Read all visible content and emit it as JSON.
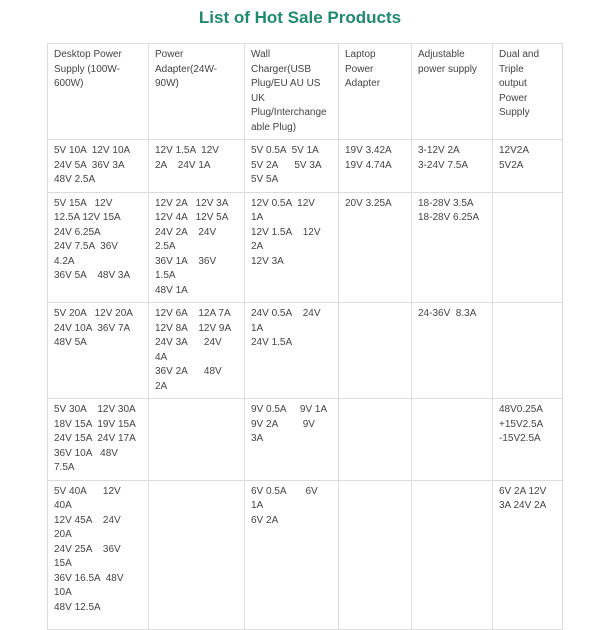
{
  "header": {
    "title": "List of Hot Sale Products"
  },
  "table": {
    "columns": [
      [
        "Desktop Power",
        "Supply (100W-",
        "600W)"
      ],
      [
        "Power",
        "Adapter(24W-",
        "90W)"
      ],
      [
        "Wall",
        "Charger(USB",
        "Plug/EU AU US",
        "UK",
        "Plug/Interchange",
        "able Plug)"
      ],
      [
        "Laptop",
        "Power",
        "Adapter"
      ],
      [
        "Adjustable",
        "power supply"
      ],
      [
        "Dual and",
        "Triple",
        "output",
        "Power",
        "Supply"
      ]
    ],
    "rows": [
      [
        [
          "5V 10A  12V 10A",
          "24V 5A  36V 3A",
          "48V 2.5A"
        ],
        [
          "12V 1.5A  12V",
          "2A    24V 1A"
        ],
        [
          "5V 0.5A  5V 1A",
          "5V 2A      5V 3A",
          "5V 5A"
        ],
        [
          "19V 3.42A",
          "19V 4.74A"
        ],
        [
          "3-12V 2A",
          "3-24V 7.5A"
        ],
        [
          "12V2A",
          "5V2A"
        ]
      ],
      [
        [
          "5V 15A   12V",
          "12.5A 12V 15A",
          "24V 6.25A",
          "24V 7.5A  36V",
          "4.2A",
          "36V 5A    48V 3A"
        ],
        [
          "12V 2A   12V 3A",
          "12V 4A   12V 5A",
          "24V 2A    24V",
          "2.5A",
          "36V 1A    36V",
          "1.5A",
          "48V 1A"
        ],
        [
          "12V 0.5A  12V",
          "1A",
          "12V 1.5A    12V",
          "2A",
          "12V 3A"
        ],
        [
          "20V 3.25A"
        ],
        [
          "18-28V 3.5A",
          "18-28V 6.25A"
        ],
        null
      ],
      [
        [
          "5V 20A   12V 20A",
          "24V 10A  36V 7A",
          "48V 5A"
        ],
        [
          "12V 6A    12A 7A",
          "12V 8A    12V 9A",
          "24V 3A      24V",
          "4A",
          "36V 2A      48V",
          "2A"
        ],
        [
          "24V 0.5A    24V",
          "1A",
          "24V 1.5A"
        ],
        null,
        [
          "24-36V  8.3A"
        ],
        null
      ],
      [
        [
          "5V 30A    12V 30A",
          "18V 15A  19V 15A",
          "24V 15A  24V 17A",
          "36V 10A   48V",
          "7.5A"
        ],
        null,
        [
          "9V 0.5A     9V 1A",
          "9V 2A         9V",
          "3A"
        ],
        null,
        null,
        [
          "48V0.25A",
          "+15V2.5A",
          "-15V2.5A"
        ]
      ],
      [
        [
          "5V 40A      12V",
          "40A",
          "12V 45A    24V",
          "20A",
          "24V 25A    36V",
          "15A",
          "36V 16.5A  48V",
          "10A",
          "48V 12.5A"
        ],
        null,
        [
          "6V 0.5A       6V",
          "1A",
          "6V 2A"
        ],
        null,
        null,
        [
          "6V 2A 12V",
          "3A 24V 2A"
        ]
      ]
    ]
  }
}
